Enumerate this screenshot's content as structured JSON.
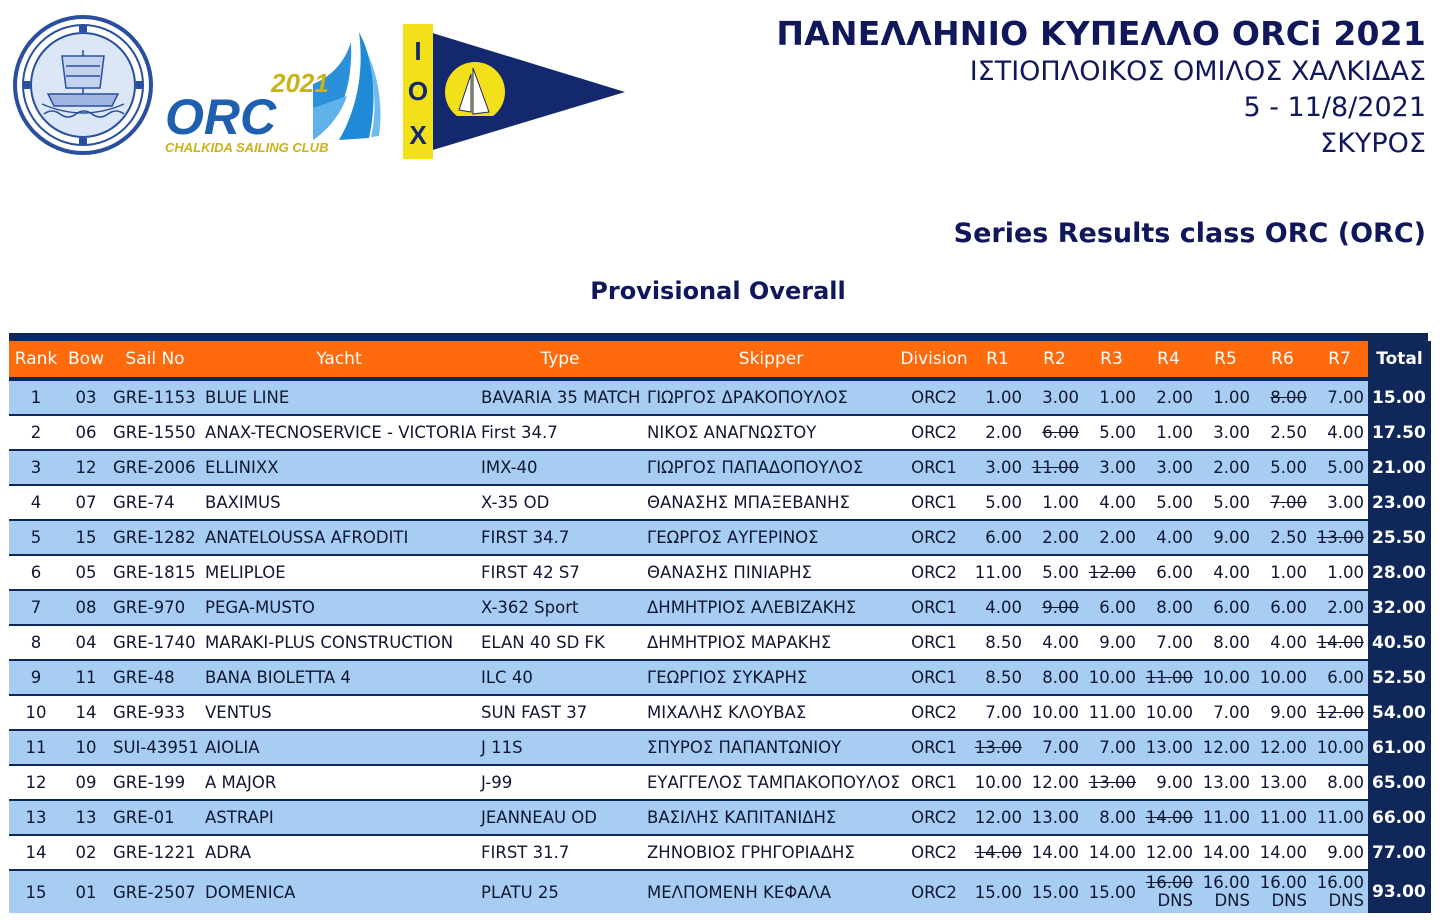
{
  "header": {
    "event_title": "ΠΑΝΕΛΛΗΝΙΟ ΚΥΠΕΛΛΟ ORCi 2021",
    "club": "ΙΣΤΙΟΠΛΟΙΚΟΣ ΟΜΙΛΟΣ ΧΑΛΚΙΔΑΣ",
    "dates": "5 - 11/8/2021",
    "venue": "ΣΚΥΡΟΣ"
  },
  "logo": {
    "year": "2021",
    "orc": "ORC",
    "club_name": "CHALKIDA SAILING CLUB",
    "pennant_letters": [
      "Ι",
      "Ο",
      "Χ"
    ],
    "colors": {
      "navy": "#10275a",
      "blue": "#1f6fc0",
      "gold": "#c9b21a",
      "yellow": "#f2e01a"
    }
  },
  "series_title": "Series Results class ORC (ORC)",
  "provisional_title": "Provisional Overall",
  "colors": {
    "header_bg": "#ff6a0d",
    "odd_row": "#a7cdf2",
    "even_row": "#ffffff",
    "total_bg": "#10275a"
  },
  "columns": [
    "Rank",
    "Bow",
    "Sail No",
    "Yacht",
    "Type",
    "Skipper",
    "Division",
    "R1",
    "R2",
    "R3",
    "R4",
    "R5",
    "R6",
    "R7",
    "Total"
  ],
  "rows": [
    {
      "rank": "1",
      "bow": "03",
      "sail": "GRE-1153",
      "yacht": "BLUE LINE",
      "type": "BAVARIA 35 MATCH",
      "skipper": "ΓΙΩΡΓΟΣ ΔΡΑΚΟΠΟΥΛΟΣ",
      "division": "ORC2",
      "races": [
        {
          "v": "1.00"
        },
        {
          "v": "3.00"
        },
        {
          "v": "1.00"
        },
        {
          "v": "2.00"
        },
        {
          "v": "1.00"
        },
        {
          "v": "8.00",
          "d": true
        },
        {
          "v": "7.00"
        }
      ],
      "total": "15.00"
    },
    {
      "rank": "2",
      "bow": "06",
      "sail": "GRE-1550",
      "yacht": "ANAX-TECNOSERVICE - VICTORIA",
      "type": "First 34.7",
      "skipper": "ΝΙΚΟΣ ΑΝΑΓΝΩΣΤΟΥ",
      "division": "ORC2",
      "races": [
        {
          "v": "2.00"
        },
        {
          "v": "6.00",
          "d": true
        },
        {
          "v": "5.00"
        },
        {
          "v": "1.00"
        },
        {
          "v": "3.00"
        },
        {
          "v": "2.50"
        },
        {
          "v": "4.00"
        }
      ],
      "total": "17.50"
    },
    {
      "rank": "3",
      "bow": "12",
      "sail": "GRE-2006",
      "yacht": "ELLINIXX",
      "type": "IMX-40",
      "skipper": "ΓΙΩΡΓΟΣ ΠΑΠΑΔΟΠΟΥΛΟΣ",
      "division": "ORC1",
      "races": [
        {
          "v": "3.00"
        },
        {
          "v": "11.00",
          "d": true
        },
        {
          "v": "3.00"
        },
        {
          "v": "3.00"
        },
        {
          "v": "2.00"
        },
        {
          "v": "5.00"
        },
        {
          "v": "5.00"
        }
      ],
      "total": "21.00"
    },
    {
      "rank": "4",
      "bow": "07",
      "sail": "GRE-74",
      "yacht": "BAXIMUS",
      "type": "X-35 OD",
      "skipper": "ΘΑΝΑΣΗΣ ΜΠΑΞΕΒΑΝΗΣ",
      "division": "ORC1",
      "races": [
        {
          "v": "5.00"
        },
        {
          "v": "1.00"
        },
        {
          "v": "4.00"
        },
        {
          "v": "5.00"
        },
        {
          "v": "5.00"
        },
        {
          "v": "7.00",
          "d": true
        },
        {
          "v": "3.00"
        }
      ],
      "total": "23.00"
    },
    {
      "rank": "5",
      "bow": "15",
      "sail": "GRE-1282",
      "yacht": "ANATELOUSSA AFRODITI",
      "type": "FIRST 34.7",
      "skipper": "ΓΕΩΡΓΟΣ ΑΥΓΕΡΙΝΟΣ",
      "division": "ORC2",
      "races": [
        {
          "v": "6.00"
        },
        {
          "v": "2.00"
        },
        {
          "v": "2.00"
        },
        {
          "v": "4.00"
        },
        {
          "v": "9.00"
        },
        {
          "v": "2.50"
        },
        {
          "v": "13.00",
          "d": true
        }
      ],
      "total": "25.50"
    },
    {
      "rank": "6",
      "bow": "05",
      "sail": "GRE-1815",
      "yacht": "MELIPLOE",
      "type": "FIRST 42 S7",
      "skipper": "ΘΑΝΑΣΗΣ ΠΙΝΙΑΡΗΣ",
      "division": "ORC2",
      "races": [
        {
          "v": "11.00"
        },
        {
          "v": "5.00"
        },
        {
          "v": "12.00",
          "d": true
        },
        {
          "v": "6.00"
        },
        {
          "v": "4.00"
        },
        {
          "v": "1.00"
        },
        {
          "v": "1.00"
        }
      ],
      "total": "28.00"
    },
    {
      "rank": "7",
      "bow": "08",
      "sail": "GRE-970",
      "yacht": "PEGA-MUSTO",
      "type": "X-362 Sport",
      "skipper": "ΔΗΜΗΤΡΙΟΣ ΑΛΕΒΙΖΑΚΗΣ",
      "division": "ORC1",
      "races": [
        {
          "v": "4.00"
        },
        {
          "v": "9.00",
          "d": true
        },
        {
          "v": "6.00"
        },
        {
          "v": "8.00"
        },
        {
          "v": "6.00"
        },
        {
          "v": "6.00"
        },
        {
          "v": "2.00"
        }
      ],
      "total": "32.00"
    },
    {
      "rank": "8",
      "bow": "04",
      "sail": "GRE-1740",
      "yacht": "MARAKI-PLUS CONSTRUCTION",
      "type": "ELAN 40 SD FK",
      "skipper": "ΔΗΜΗΤΡΙΟΣ ΜΑΡΑΚΗΣ",
      "division": "ORC1",
      "races": [
        {
          "v": "8.50"
        },
        {
          "v": "4.00"
        },
        {
          "v": "9.00"
        },
        {
          "v": "7.00"
        },
        {
          "v": "8.00"
        },
        {
          "v": "4.00"
        },
        {
          "v": "14.00",
          "d": true
        }
      ],
      "total": "40.50"
    },
    {
      "rank": "9",
      "bow": "11",
      "sail": "GRE-48",
      "yacht": "BANA BIOLETTA 4",
      "type": "ILC 40",
      "skipper": "ΓΕΩΡΓΙΟΣ ΣΥΚΑΡΗΣ",
      "division": "ORC1",
      "races": [
        {
          "v": "8.50"
        },
        {
          "v": "8.00"
        },
        {
          "v": "10.00"
        },
        {
          "v": "11.00",
          "d": true
        },
        {
          "v": "10.00"
        },
        {
          "v": "10.00"
        },
        {
          "v": "6.00"
        }
      ],
      "total": "52.50"
    },
    {
      "rank": "10",
      "bow": "14",
      "sail": "GRE-933",
      "yacht": "VENTUS",
      "type": "SUN FAST 37",
      "skipper": "ΜΙΧΑΛΗΣ ΚΛΟΥΒΑΣ",
      "division": "ORC2",
      "races": [
        {
          "v": "7.00"
        },
        {
          "v": "10.00"
        },
        {
          "v": "11.00"
        },
        {
          "v": "10.00"
        },
        {
          "v": "7.00"
        },
        {
          "v": "9.00"
        },
        {
          "v": "12.00",
          "d": true
        }
      ],
      "total": "54.00"
    },
    {
      "rank": "11",
      "bow": "10",
      "sail": "SUI-43951",
      "yacht": "AIOLIA",
      "type": "J 11S",
      "skipper": "ΣΠΥΡΟΣ ΠΑΠΑΝΤΩΝΙΟΥ",
      "division": "ORC1",
      "races": [
        {
          "v": "13.00",
          "d": true
        },
        {
          "v": "7.00"
        },
        {
          "v": "7.00"
        },
        {
          "v": "13.00"
        },
        {
          "v": "12.00"
        },
        {
          "v": "12.00"
        },
        {
          "v": "10.00"
        }
      ],
      "total": "61.00"
    },
    {
      "rank": "12",
      "bow": "09",
      "sail": "GRE-199",
      "yacht": "A MAJOR",
      "type": "J-99",
      "skipper": "ΕΥΑΓΓΕΛΟΣ ΤΑΜΠΑΚΟΠΟΥΛΟΣ",
      "division": "ORC1",
      "races": [
        {
          "v": "10.00"
        },
        {
          "v": "12.00"
        },
        {
          "v": "13.00",
          "d": true
        },
        {
          "v": "9.00"
        },
        {
          "v": "13.00"
        },
        {
          "v": "13.00"
        },
        {
          "v": "8.00"
        }
      ],
      "total": "65.00"
    },
    {
      "rank": "13",
      "bow": "13",
      "sail": "GRE-01",
      "yacht": "ASTRAPI",
      "type": "JEANNEAU OD",
      "skipper": "ΒΑΣΙΛΗΣ ΚΑΠΙΤΑΝΙΔΗΣ",
      "division": "ORC2",
      "races": [
        {
          "v": "12.00"
        },
        {
          "v": "13.00"
        },
        {
          "v": "8.00"
        },
        {
          "v": "14.00",
          "d": true
        },
        {
          "v": "11.00"
        },
        {
          "v": "11.00"
        },
        {
          "v": "11.00"
        }
      ],
      "total": "66.00"
    },
    {
      "rank": "14",
      "bow": "02",
      "sail": "GRE-1221",
      "yacht": "ADRA",
      "type": "FIRST 31.7",
      "skipper": "ΖΗΝΟΒΙΟΣ ΓΡΗΓΟΡΙΑΔΗΣ",
      "division": "ORC2",
      "races": [
        {
          "v": "14.00",
          "d": true
        },
        {
          "v": "14.00"
        },
        {
          "v": "14.00"
        },
        {
          "v": "12.00"
        },
        {
          "v": "14.00"
        },
        {
          "v": "14.00"
        },
        {
          "v": "9.00"
        }
      ],
      "total": "77.00"
    },
    {
      "rank": "15",
      "bow": "01",
      "sail": "GRE-2507",
      "yacht": "DOMENICA",
      "type": "PLATU 25",
      "skipper": "ΜΕΛΠΟΜΕΝΗ ΚΕΦΑΛΑ",
      "division": "ORC2",
      "races": [
        {
          "v": "15.00"
        },
        {
          "v": "15.00"
        },
        {
          "v": "15.00"
        },
        {
          "v": "16.00",
          "d": true,
          "n": "DNS"
        },
        {
          "v": "16.00",
          "n": "DNS"
        },
        {
          "v": "16.00",
          "n": "DNS"
        },
        {
          "v": "16.00",
          "n": "DNS"
        }
      ],
      "total": "93.00"
    }
  ]
}
